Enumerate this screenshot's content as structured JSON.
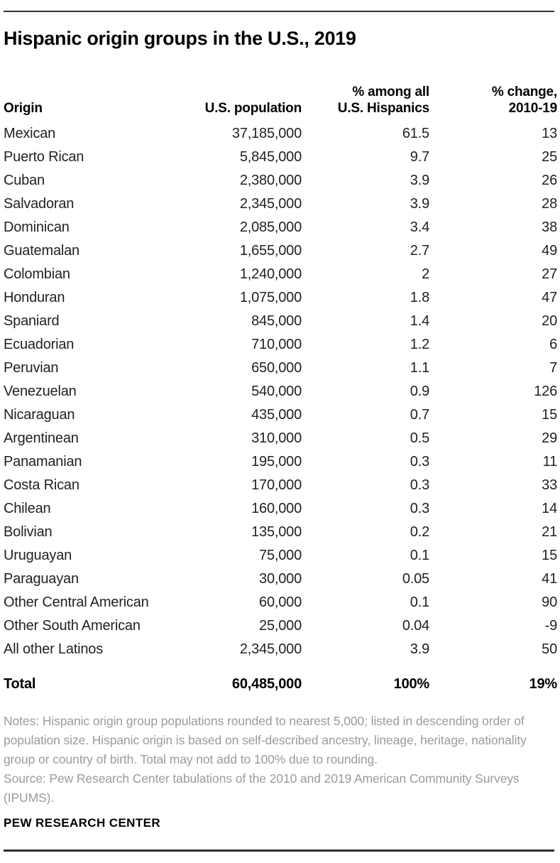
{
  "title": "Hispanic origin groups in the U.S., 2019",
  "table": {
    "headers": {
      "origin": "Origin",
      "population": "U.S. population",
      "pct_line1": "% among all",
      "pct_line2": "U.S. Hispanics",
      "change_line1": "% change,",
      "change_line2": "2010-19"
    },
    "rows": [
      {
        "origin": "Mexican",
        "population": "37,185,000",
        "pct": "61.5",
        "change": "13"
      },
      {
        "origin": "Puerto Rican",
        "population": "5,845,000",
        "pct": "9.7",
        "change": "25"
      },
      {
        "origin": "Cuban",
        "population": "2,380,000",
        "pct": "3.9",
        "change": "26"
      },
      {
        "origin": "Salvadoran",
        "population": "2,345,000",
        "pct": "3.9",
        "change": "28"
      },
      {
        "origin": "Dominican",
        "population": "2,085,000",
        "pct": "3.4",
        "change": "38"
      },
      {
        "origin": "Guatemalan",
        "population": "1,655,000",
        "pct": "2.7",
        "change": "49"
      },
      {
        "origin": "Colombian",
        "population": "1,240,000",
        "pct": "2",
        "change": "27"
      },
      {
        "origin": "Honduran",
        "population": "1,075,000",
        "pct": "1.8",
        "change": "47"
      },
      {
        "origin": "Spaniard",
        "population": "845,000",
        "pct": "1.4",
        "change": "20"
      },
      {
        "origin": "Ecuadorian",
        "population": "710,000",
        "pct": "1.2",
        "change": "6"
      },
      {
        "origin": "Peruvian",
        "population": "650,000",
        "pct": "1.1",
        "change": "7"
      },
      {
        "origin": "Venezuelan",
        "population": "540,000",
        "pct": "0.9",
        "change": "126"
      },
      {
        "origin": "Nicaraguan",
        "population": "435,000",
        "pct": "0.7",
        "change": "15"
      },
      {
        "origin": "Argentinean",
        "population": "310,000",
        "pct": "0.5",
        "change": "29"
      },
      {
        "origin": "Panamanian",
        "population": "195,000",
        "pct": "0.3",
        "change": "11"
      },
      {
        "origin": "Costa Rican",
        "population": "170,000",
        "pct": "0.3",
        "change": "33"
      },
      {
        "origin": "Chilean",
        "population": "160,000",
        "pct": "0.3",
        "change": "14"
      },
      {
        "origin": "Bolivian",
        "population": "135,000",
        "pct": "0.2",
        "change": "21"
      },
      {
        "origin": "Uruguayan",
        "population": "75,000",
        "pct": "0.1",
        "change": "15"
      },
      {
        "origin": "Paraguayan",
        "population": "30,000",
        "pct": "0.05",
        "change": "41"
      }
    ],
    "other_rows": [
      {
        "origin": "Other Central American",
        "population": "60,000",
        "pct": "0.1",
        "change": "90"
      },
      {
        "origin": "Other South American",
        "population": "25,000",
        "pct": "0.04",
        "change": "-9"
      },
      {
        "origin": "All other Latinos",
        "population": "2,345,000",
        "pct": "3.9",
        "change": "50"
      }
    ],
    "total": {
      "origin": "Total",
      "population": "60,485,000",
      "pct": "100%",
      "change": "19%"
    }
  },
  "notes": {
    "notes_text": "Notes: Hispanic origin group populations rounded to nearest 5,000; listed in descending order of population size. Hispanic origin is based on self-described ancestry, lineage, heritage, nationality group or country of birth. Total may not add to 100% due to rounding.",
    "source_text": "Source: Pew Research Center tabulations of the 2010 and 2019 American Community Surveys (IPUMS)."
  },
  "footer": {
    "brand": "PEW RESEARCH CENTER"
  },
  "colors": {
    "text": "#222222",
    "title": "#000000",
    "notes_gray": "#9b9b9b",
    "rule": "#333333"
  },
  "chart_data": {
    "type": "table",
    "title": "Hispanic origin groups in the U.S., 2019",
    "columns": [
      "Origin",
      "U.S. population",
      "% among all U.S. Hispanics",
      "% change, 2010-19"
    ],
    "rows": [
      [
        "Mexican",
        37185000,
        61.5,
        13
      ],
      [
        "Puerto Rican",
        5845000,
        9.7,
        25
      ],
      [
        "Cuban",
        2380000,
        3.9,
        26
      ],
      [
        "Salvadoran",
        2345000,
        3.9,
        28
      ],
      [
        "Dominican",
        2085000,
        3.4,
        38
      ],
      [
        "Guatemalan",
        1655000,
        2.7,
        49
      ],
      [
        "Colombian",
        1240000,
        2,
        27
      ],
      [
        "Honduran",
        1075000,
        1.8,
        47
      ],
      [
        "Spaniard",
        845000,
        1.4,
        20
      ],
      [
        "Ecuadorian",
        710000,
        1.2,
        6
      ],
      [
        "Peruvian",
        650000,
        1.1,
        7
      ],
      [
        "Venezuelan",
        540000,
        0.9,
        126
      ],
      [
        "Nicaraguan",
        435000,
        0.7,
        15
      ],
      [
        "Argentinean",
        310000,
        0.5,
        29
      ],
      [
        "Panamanian",
        195000,
        0.3,
        11
      ],
      [
        "Costa Rican",
        170000,
        0.3,
        33
      ],
      [
        "Chilean",
        160000,
        0.3,
        14
      ],
      [
        "Bolivian",
        135000,
        0.2,
        21
      ],
      [
        "Uruguayan",
        75000,
        0.1,
        15
      ],
      [
        "Paraguayan",
        30000,
        0.05,
        41
      ],
      [
        "Other Central American",
        60000,
        0.1,
        90
      ],
      [
        "Other South American",
        25000,
        0.04,
        -9
      ],
      [
        "All other Latinos",
        2345000,
        3.9,
        50
      ]
    ],
    "total_row": [
      "Total",
      60485000,
      "100%",
      "19%"
    ]
  }
}
